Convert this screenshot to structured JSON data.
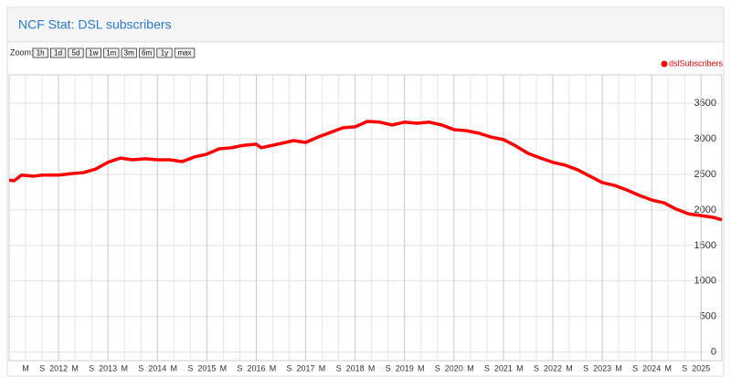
{
  "header": {
    "title": "NCF Stat: DSL subscribers"
  },
  "zoom": {
    "label": "Zoom:",
    "buttons": [
      "1h",
      "1d",
      "5d",
      "1w",
      "1m",
      "3m",
      "6m",
      "1y",
      "max"
    ]
  },
  "chart_data": {
    "type": "line",
    "x": [
      2011.0,
      2011.1,
      2011.25,
      2011.5,
      2011.67,
      2012.0,
      2012.25,
      2012.5,
      2012.75,
      2013.0,
      2013.25,
      2013.5,
      2013.75,
      2014.0,
      2014.25,
      2014.5,
      2014.75,
      2015.0,
      2015.25,
      2015.5,
      2015.75,
      2016.0,
      2016.1,
      2016.5,
      2016.75,
      2017.0,
      2017.25,
      2017.5,
      2017.75,
      2018.0,
      2018.25,
      2018.5,
      2018.75,
      2019.0,
      2019.25,
      2019.5,
      2019.75,
      2020.0,
      2020.25,
      2020.5,
      2020.75,
      2021.0,
      2021.25,
      2021.5,
      2021.75,
      2022.0,
      2022.25,
      2022.5,
      2022.75,
      2023.0,
      2023.25,
      2023.5,
      2023.75,
      2024.0,
      2024.25,
      2024.5,
      2024.75,
      2025.0,
      2025.25,
      2025.42
    ],
    "series": [
      {
        "name": "dslSubscribers",
        "color": "#ff0000",
        "values": [
          2420,
          2410,
          2490,
          2475,
          2490,
          2490,
          2510,
          2525,
          2575,
          2670,
          2730,
          2705,
          2720,
          2705,
          2705,
          2680,
          2745,
          2785,
          2860,
          2875,
          2910,
          2925,
          2875,
          2935,
          2975,
          2950,
          3025,
          3090,
          3155,
          3170,
          3245,
          3235,
          3195,
          3235,
          3220,
          3235,
          3195,
          3130,
          3115,
          3080,
          3025,
          2990,
          2900,
          2795,
          2730,
          2670,
          2630,
          2565,
          2475,
          2385,
          2345,
          2280,
          2205,
          2140,
          2100,
          2010,
          1945,
          1920,
          1895,
          1860
        ]
      }
    ],
    "xlim": [
      2011.0,
      2025.42
    ],
    "xticks": [
      {
        "value": 2011.333,
        "label": "M"
      },
      {
        "value": 2011.667,
        "label": "S"
      },
      2012,
      {
        "value": 2012.333,
        "label": "M"
      },
      {
        "value": 2012.667,
        "label": "S"
      },
      2013,
      {
        "value": 2013.333,
        "label": "M"
      },
      {
        "value": 2013.667,
        "label": "S"
      },
      2014,
      {
        "value": 2014.333,
        "label": "M"
      },
      {
        "value": 2014.667,
        "label": "S"
      },
      2015,
      {
        "value": 2015.333,
        "label": "M"
      },
      {
        "value": 2015.667,
        "label": "S"
      },
      2016,
      {
        "value": 2016.333,
        "label": "M"
      },
      {
        "value": 2016.667,
        "label": "S"
      },
      2017,
      {
        "value": 2017.333,
        "label": "M"
      },
      {
        "value": 2017.667,
        "label": "S"
      },
      2018,
      {
        "value": 2018.333,
        "label": "M"
      },
      {
        "value": 2018.667,
        "label": "S"
      },
      2019,
      {
        "value": 2019.333,
        "label": "M"
      },
      {
        "value": 2019.667,
        "label": "S"
      },
      2020,
      {
        "value": 2020.333,
        "label": "M"
      },
      {
        "value": 2020.667,
        "label": "S"
      },
      2021,
      {
        "value": 2021.333,
        "label": "M"
      },
      {
        "value": 2021.667,
        "label": "S"
      },
      2022,
      {
        "value": 2022.333,
        "label": "M"
      },
      {
        "value": 2022.667,
        "label": "S"
      },
      2023,
      {
        "value": 2023.333,
        "label": "M"
      },
      {
        "value": 2023.667,
        "label": "S"
      },
      2024,
      {
        "value": 2024.333,
        "label": "M"
      },
      {
        "value": 2024.667,
        "label": "S"
      },
      2025
    ],
    "ylim": [
      -120,
      3900
    ],
    "yticks": [
      0,
      500,
      1000,
      1500,
      2000,
      2500,
      3000,
      3500
    ],
    "grid": true,
    "legend": "top-right"
  }
}
